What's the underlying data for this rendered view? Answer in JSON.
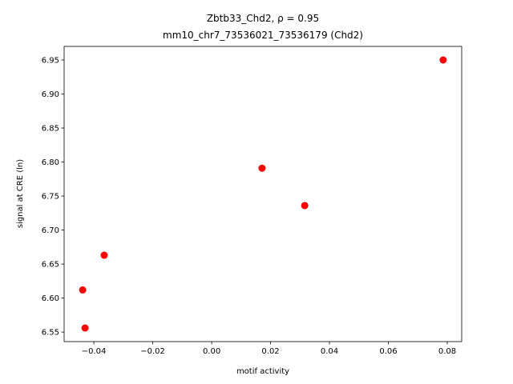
{
  "chart_data": {
    "type": "scatter",
    "title": "Zbtb33_Chd2, ρ = 0.95",
    "subtitle": "mm10_chr7_73536021_73536179 (Chd2)",
    "x_label": "motif activity",
    "y_label": "signal at CRE (ln)",
    "series": [
      {
        "color": "#ff0000",
        "x": [
          0.0786,
          0.0171,
          0.0316,
          -0.0365,
          -0.0438,
          -0.043
        ],
        "values": [
          6.95,
          6.791,
          6.736,
          6.663,
          6.612,
          6.556
        ]
      }
    ],
    "xlim": [
      -0.0501,
      0.0849
    ],
    "ylim": [
      6.536,
      6.97
    ],
    "xticks": [
      {
        "value": -0.04,
        "label": "−0.04"
      },
      {
        "value": -0.02,
        "label": "−0.02"
      },
      {
        "value": 0,
        "label": "0.00"
      },
      0.02,
      0.04,
      0.06,
      0.08
    ],
    "yticks": [
      6.55,
      {
        "value": 6.6,
        "label": "6.60"
      },
      6.65,
      {
        "value": 6.7,
        "label": "6.70"
      },
      6.75,
      {
        "value": 6.8,
        "label": "6.80"
      },
      6.85,
      {
        "value": 6.9,
        "label": "6.90"
      },
      6.95
    ]
  }
}
